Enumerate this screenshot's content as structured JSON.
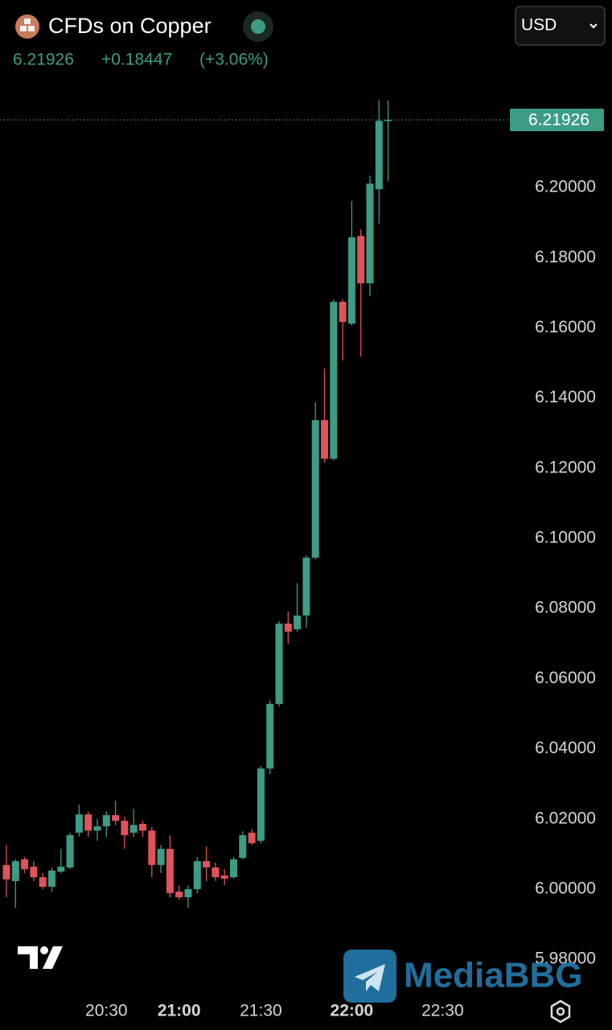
{
  "header": {
    "title": "CFDs on Copper",
    "price": "6.21926",
    "change": "+0.18447",
    "change_percent": "(+3.06%)",
    "currency": "USD"
  },
  "chart_data": {
    "type": "candlestick",
    "categories": [
      null,
      null,
      null,
      null,
      null,
      null,
      null,
      null,
      null,
      null,
      null,
      "20:30",
      null,
      null,
      null,
      null,
      null,
      null,
      null,
      "21:00",
      null,
      null,
      null,
      null,
      null,
      null,
      null,
      null,
      "21:30",
      null,
      null,
      null,
      null,
      null,
      null,
      null,
      null,
      null,
      "22:00",
      null,
      null,
      null,
      null,
      null,
      null,
      null,
      null,
      null,
      "22:30"
    ],
    "open": [
      6.0069,
      6.0023,
      6.0085,
      6.0064,
      6.0034,
      6.0007,
      6.005,
      6.0062,
      6.0161,
      6.0213,
      6.0167,
      6.0179,
      6.0211,
      6.0195,
      6.0161,
      6.0186,
      6.0167,
      6.0069,
      6.0115,
      5.9993,
      5.9977,
      6.0,
      6.008,
      6.0062,
      6.0039,
      6.0034,
      6.0089,
      6.0161,
      6.0138,
      6.0344,
      6.0528,
      6.0757,
      6.0741,
      6.078,
      6.0945,
      6.1337,
      6.1227,
      6.1674,
      6.1612,
      6.1862,
      6.1727,
      6.1995,
      6.219,
      null,
      null,
      null,
      null,
      null,
      null
    ],
    "high": [
      6.0126,
      6.0085,
      6.0092,
      6.008,
      6.0046,
      6.0062,
      6.0115,
      6.0161,
      6.0241,
      6.0222,
      6.02,
      6.0222,
      6.0252,
      6.0206,
      6.0229,
      6.0195,
      6.0177,
      6.0126,
      6.0154,
      6.0011,
      6.0011,
      6.0092,
      6.0122,
      6.0076,
      6.0057,
      6.0092,
      6.0165,
      6.0172,
      6.0351,
      6.0539,
      6.0764,
      6.0791,
      6.0872,
      6.0952,
      6.1388,
      6.1484,
      6.1681,
      6.1681,
      6.1961,
      6.1881,
      6.2034,
      6.2248,
      6.2248,
      null,
      null,
      null,
      null,
      null,
      null
    ],
    "low": [
      5.9977,
      5.9947,
      6.0046,
      6.0023,
      6.0,
      5.9993,
      6.0046,
      6.0057,
      6.0149,
      6.0149,
      6.0138,
      6.0149,
      6.0183,
      6.0115,
      6.0149,
      6.0149,
      6.0034,
      6.0046,
      5.9977,
      5.997,
      5.9947,
      5.9989,
      6.0023,
      6.0023,
      6.0011,
      6.003,
      6.0085,
      6.0126,
      6.0131,
      6.0328,
      6.0521,
      6.07,
      6.0734,
      6.0745,
      6.094,
      6.1216,
      6.1222,
      6.1507,
      6.1606,
      6.1518,
      6.169,
      6.1897,
      6.2018,
      null,
      null,
      null,
      null,
      null,
      null
    ],
    "close": [
      6.0028,
      6.008,
      6.0057,
      6.0034,
      6.0007,
      6.0053,
      6.0064,
      6.0154,
      6.0213,
      6.0167,
      6.0179,
      6.0211,
      6.0195,
      6.0154,
      6.0183,
      6.0167,
      6.0069,
      6.0115,
      5.9989,
      5.9977,
      6.0,
      6.008,
      6.0062,
      6.0034,
      6.003,
      6.0085,
      6.0154,
      6.0131,
      6.0344,
      6.0528,
      6.0757,
      6.0734,
      6.078,
      6.0945,
      6.1337,
      6.1227,
      6.1674,
      6.1617,
      6.1858,
      6.1727,
      6.2011,
      6.219,
      6.21926,
      null,
      null,
      null,
      null,
      null,
      null
    ],
    "up_color": "#3d9c85",
    "down_color": "#e0535b",
    "ylim": [
      5.97133,
      6.23968
    ],
    "yticks": [
      {
        "value": 5.98,
        "label": "5.98000"
      },
      {
        "value": 6.0,
        "label": "6.00000"
      },
      {
        "value": 6.02,
        "label": "6.02000"
      },
      {
        "value": 6.04,
        "label": "6.04000"
      },
      {
        "value": 6.06,
        "label": "6.06000"
      },
      {
        "value": 6.08,
        "label": "6.08000"
      },
      {
        "value": 6.1,
        "label": "6.10000"
      },
      {
        "value": 6.12,
        "label": "6.12000"
      },
      {
        "value": 6.14,
        "label": "6.14000"
      },
      {
        "value": 6.16,
        "label": "6.16000"
      },
      {
        "value": 6.18,
        "label": "6.18000"
      },
      {
        "value": 6.2,
        "label": "6.20000"
      }
    ],
    "last_price": 6.21926
  },
  "watermark": "MediaBBG"
}
